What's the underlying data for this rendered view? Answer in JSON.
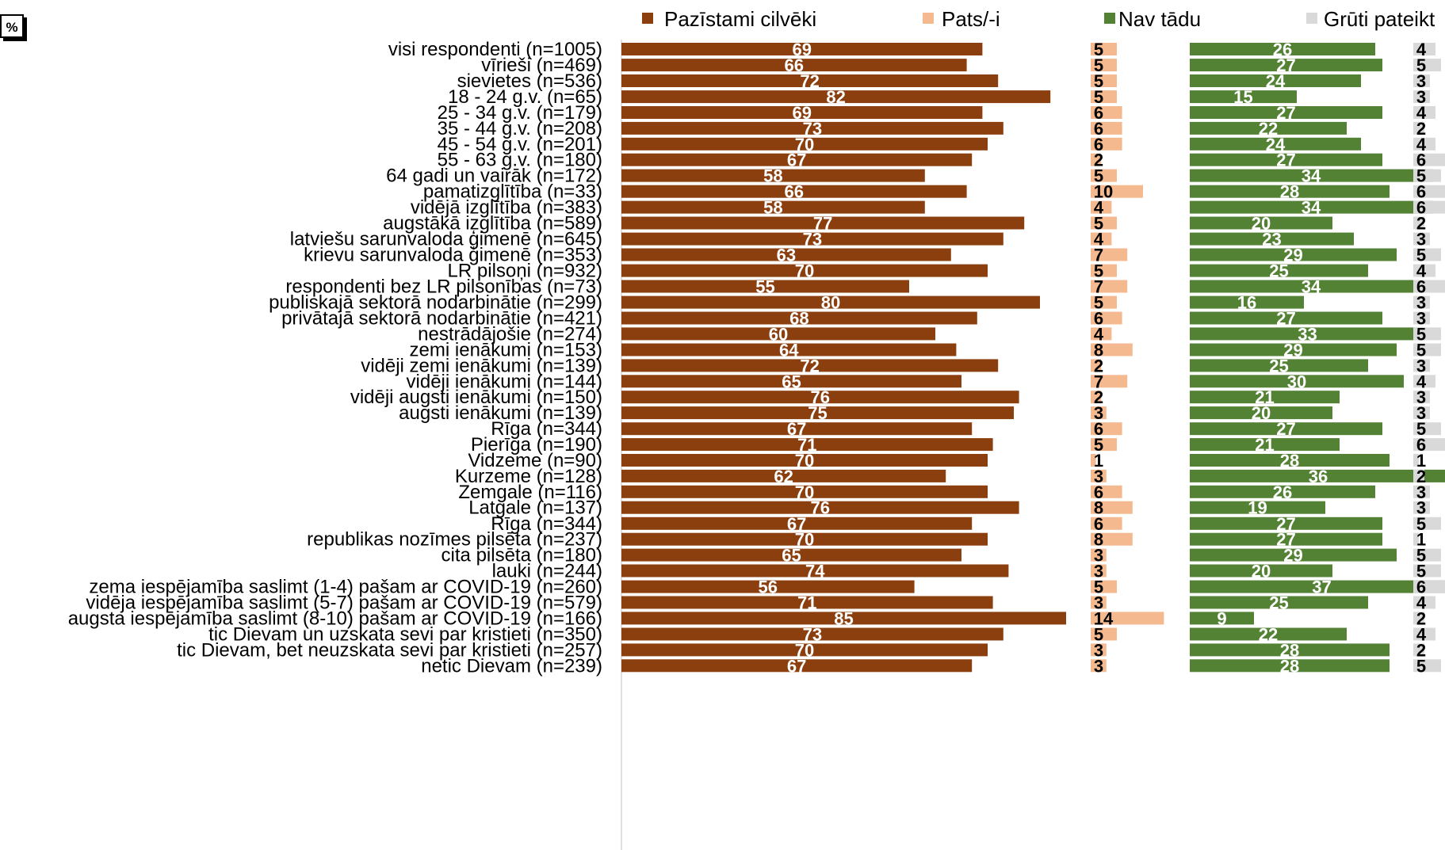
{
  "corner_label": "%",
  "colors": {
    "pazistami": "#8B3F0E",
    "pats": "#F5B98F",
    "nav": "#548235",
    "gruti": "#D9D9D9"
  },
  "chart_data": {
    "type": "bar",
    "orientation": "horizontal",
    "layout": "small-multiples",
    "unit": "%",
    "legend_position": "top",
    "categories": [
      "visi respondenti (n=1005)",
      "vīrieši (n=469)",
      "sievietes (n=536)",
      "18 - 24 g.v. (n=65)",
      "25 - 34 g.v. (n=179)",
      "35 - 44 g.v. (n=208)",
      "45 - 54 g.v. (n=201)",
      "55 - 63 g.v. (n=180)",
      "64 gadi un vairāk (n=172)",
      "pamatizglītība (n=33)",
      "vidējā izglītība (n=383)",
      "augstākā izglītība (n=589)",
      "latviešu sarunvaloda ģimenē (n=645)",
      "krievu sarunvaloda ģimenē (n=353)",
      "LR pilsoņi (n=932)",
      "respondenti bez LR pilsonības (n=73)",
      "publiskajā sektorā nodarbinātie (n=299)",
      "privātajā sektorā nodarbinātie (n=421)",
      "nestrādājošie (n=274)",
      "zemi ienākumi (n=153)",
      "vidēji zemi ienākumi (n=139)",
      "vidēji ienākumi (n=144)",
      "vidēji augsti ienākumi (n=150)",
      "augsti ienākumi (n=139)",
      "Rīga (n=344)",
      "Pierīga (n=190)",
      "Vidzeme (n=90)",
      "Kurzeme (n=128)",
      "Zemgale (n=116)",
      "Latgale (n=137)",
      "Rīga (n=344)",
      "republikas nozīmes pilsēta (n=237)",
      "cita pilsēta (n=180)",
      "lauki (n=244)",
      "zema iespējamība saslimt (1-4) pašam ar COVID-19 (n=260)",
      "vidēja iespējamība saslimt (5-7) pašam ar COVID-19 (n=579)",
      "augsta iespējamība saslimt (8-10) pašam ar COVID-19 (n=166)",
      "tic Dievam un uzskata sevi par kristieti (n=350)",
      "tic Dievam, bet neuzskata sevi par kristieti (n=257)",
      "netic Dievam (n=239)"
    ],
    "groups": [
      [
        0
      ],
      [
        1,
        2
      ],
      [
        3,
        4,
        5,
        6,
        7,
        8
      ],
      [
        9,
        10,
        11
      ],
      [
        12,
        13
      ],
      [
        14,
        15
      ],
      [
        16,
        17,
        18
      ],
      [
        19,
        20,
        21,
        22,
        23
      ],
      [
        24,
        25,
        26,
        27,
        28,
        29
      ],
      [
        30,
        31,
        32,
        33
      ],
      [
        34,
        35,
        36
      ],
      [
        37,
        38,
        39
      ]
    ],
    "series": [
      {
        "name": "Pazīstami cilvēki",
        "color": "#8B3F0E",
        "values": [
          69,
          66,
          72,
          82,
          69,
          73,
          70,
          67,
          58,
          66,
          58,
          77,
          73,
          63,
          70,
          55,
          80,
          68,
          60,
          64,
          72,
          65,
          76,
          75,
          67,
          71,
          70,
          62,
          70,
          76,
          67,
          70,
          65,
          74,
          56,
          71,
          85,
          73,
          70,
          67
        ]
      },
      {
        "name": "Pats/-i",
        "color": "#F5B98F",
        "values": [
          5,
          5,
          5,
          5,
          6,
          6,
          6,
          2,
          5,
          10,
          4,
          5,
          4,
          7,
          5,
          7,
          5,
          6,
          4,
          8,
          2,
          7,
          2,
          3,
          6,
          5,
          1,
          3,
          6,
          8,
          6,
          8,
          3,
          3,
          5,
          3,
          14,
          5,
          3,
          3
        ]
      },
      {
        "name": "Nav tādu",
        "color": "#548235",
        "values": [
          26,
          27,
          24,
          15,
          27,
          22,
          24,
          27,
          34,
          28,
          34,
          20,
          23,
          29,
          25,
          34,
          16,
          27,
          33,
          29,
          25,
          30,
          21,
          20,
          27,
          21,
          28,
          36,
          26,
          19,
          27,
          27,
          29,
          20,
          37,
          25,
          9,
          22,
          28,
          28
        ]
      },
      {
        "name": "Grūti pateikt",
        "color": "#D9D9D9",
        "values": [
          4,
          5,
          3,
          3,
          4,
          2,
          4,
          6,
          5,
          6,
          6,
          2,
          3,
          5,
          4,
          6,
          3,
          3,
          5,
          5,
          3,
          4,
          3,
          3,
          5,
          6,
          1,
          2,
          3,
          3,
          5,
          1,
          5,
          5,
          6,
          4,
          2,
          4,
          2,
          5
        ]
      }
    ]
  }
}
